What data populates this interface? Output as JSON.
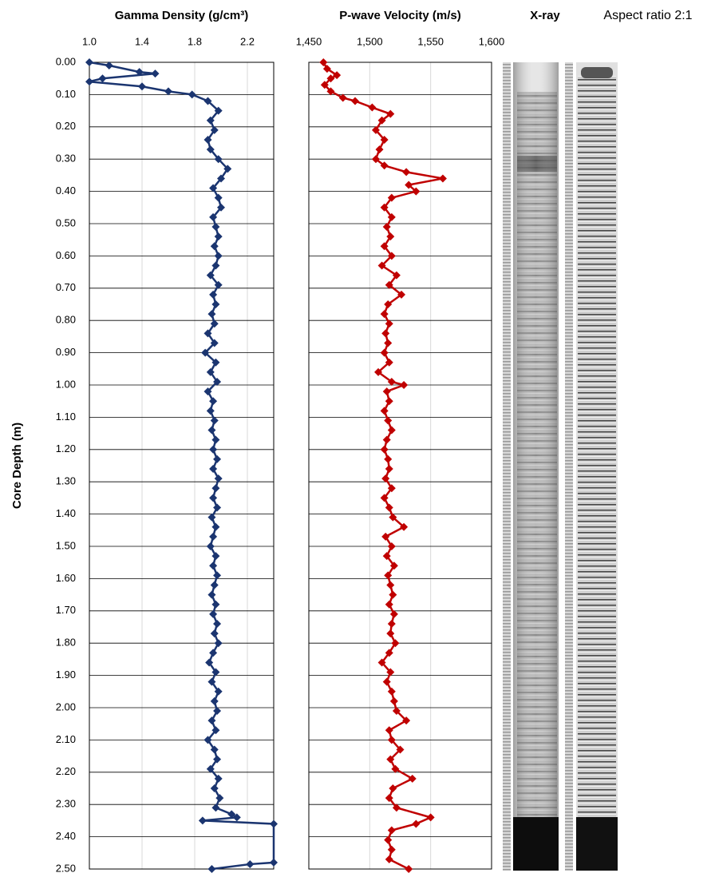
{
  "chart_data": [
    {
      "type": "line",
      "title": "Gamma Density (g/cm³)",
      "ylabel": "Core Depth (m)",
      "color": "#1b3570",
      "marker": "diamond",
      "xlim": [
        1.0,
        2.4
      ],
      "xticks": [
        {
          "value": 1.0,
          "label": "1.0"
        },
        1.4,
        1.8,
        2.2
      ],
      "ylim": [
        0,
        2.5
      ],
      "yticks": [
        {
          "value": 0,
          "label": "0.00"
        },
        {
          "value": 0.1,
          "label": "0.10"
        },
        {
          "value": 0.2,
          "label": "0.20"
        },
        {
          "value": 0.3,
          "label": "0.30"
        },
        {
          "value": 0.4,
          "label": "0.40"
        },
        {
          "value": 0.5,
          "label": "0.50"
        },
        {
          "value": 0.6,
          "label": "0.60"
        },
        {
          "value": 0.7,
          "label": "0.70"
        },
        {
          "value": 0.8,
          "label": "0.80"
        },
        {
          "value": 0.9,
          "label": "0.90"
        },
        {
          "value": 1.0,
          "label": "1.00"
        },
        {
          "value": 1.1,
          "label": "1.10"
        },
        {
          "value": 1.2,
          "label": "1.20"
        },
        {
          "value": 1.3,
          "label": "1.30"
        },
        {
          "value": 1.4,
          "label": "1.40"
        },
        {
          "value": 1.5,
          "label": "1.50"
        },
        {
          "value": 1.6,
          "label": "1.60"
        },
        {
          "value": 1.7,
          "label": "1.70"
        },
        {
          "value": 1.8,
          "label": "1.80"
        },
        {
          "value": 1.9,
          "label": "1.90"
        },
        {
          "value": 2.0,
          "label": "2.00"
        },
        {
          "value": 2.1,
          "label": "2.10"
        },
        {
          "value": 2.2,
          "label": "2.20"
        },
        {
          "value": 2.3,
          "label": "2.30"
        },
        {
          "value": 2.4,
          "label": "2.40"
        },
        {
          "value": 2.5,
          "label": "2.50"
        }
      ],
      "grid": true,
      "depth": [
        0,
        0.01,
        0.03,
        0.035,
        0.05,
        0.06,
        0.075,
        0.09,
        0.1,
        0.12,
        0.15,
        0.18,
        0.21,
        0.24,
        0.27,
        0.3,
        0.33,
        0.36,
        0.39,
        0.42,
        0.45,
        0.48,
        0.51,
        0.54,
        0.57,
        0.6,
        0.63,
        0.66,
        0.69,
        0.72,
        0.75,
        0.78,
        0.81,
        0.84,
        0.87,
        0.9,
        0.93,
        0.96,
        0.99,
        1.02,
        1.05,
        1.08,
        1.11,
        1.14,
        1.17,
        1.2,
        1.23,
        1.26,
        1.29,
        1.32,
        1.35,
        1.38,
        1.41,
        1.44,
        1.47,
        1.5,
        1.53,
        1.56,
        1.59,
        1.62,
        1.65,
        1.68,
        1.71,
        1.74,
        1.77,
        1.8,
        1.83,
        1.86,
        1.89,
        1.92,
        1.95,
        1.98,
        2.01,
        2.04,
        2.07,
        2.1,
        2.13,
        2.16,
        2.19,
        2.22,
        2.25,
        2.28,
        2.31,
        2.33,
        2.34,
        2.35,
        2.36,
        2.48,
        2.485,
        2.5
      ],
      "values": [
        1.0,
        1.15,
        1.38,
        1.5,
        1.1,
        1.0,
        1.4,
        1.6,
        1.78,
        1.9,
        1.98,
        1.92,
        1.95,
        1.9,
        1.92,
        1.98,
        2.05,
        2.0,
        1.94,
        1.98,
        2.0,
        1.94,
        1.96,
        1.98,
        1.95,
        1.98,
        1.96,
        1.92,
        1.98,
        1.94,
        1.96,
        1.93,
        1.95,
        1.9,
        1.95,
        1.88,
        1.96,
        1.92,
        1.97,
        1.9,
        1.94,
        1.92,
        1.95,
        1.93,
        1.96,
        1.94,
        1.97,
        1.94,
        1.98,
        1.96,
        1.94,
        1.97,
        1.93,
        1.96,
        1.94,
        1.92,
        1.96,
        1.94,
        1.97,
        1.95,
        1.93,
        1.96,
        1.94,
        1.97,
        1.95,
        1.98,
        1.94,
        1.91,
        1.96,
        1.93,
        1.98,
        1.95,
        1.97,
        1.93,
        1.96,
        1.9,
        1.95,
        1.97,
        1.92,
        1.98,
        1.95,
        1.99,
        1.96,
        2.08,
        2.12,
        1.86,
        2.4,
        2.4,
        2.22,
        1.93
      ]
    },
    {
      "type": "line",
      "title": "P-wave Velocity (m/s)",
      "color": "#c00000",
      "marker": "diamond",
      "xlim": [
        1450,
        1600
      ],
      "xticks": [
        {
          "value": 1450,
          "label": "1,450"
        },
        {
          "value": 1500,
          "label": "1,500"
        },
        {
          "value": 1550,
          "label": "1,550"
        },
        {
          "value": 1600,
          "label": "1,600"
        }
      ],
      "ylim": [
        0,
        2.5
      ],
      "yticks": [
        0,
        0.1,
        0.2,
        0.3,
        0.4,
        0.5,
        0.6,
        0.7,
        0.8,
        0.9,
        1.0,
        1.1,
        1.2,
        1.3,
        1.4,
        1.5,
        1.6,
        1.7,
        1.8,
        1.9,
        2.0,
        2.1,
        2.2,
        2.3,
        2.4,
        2.5
      ],
      "grid": true,
      "depth": [
        0,
        0.02,
        0.04,
        0.05,
        0.07,
        0.09,
        0.11,
        0.12,
        0.14,
        0.16,
        0.18,
        0.21,
        0.24,
        0.27,
        0.3,
        0.32,
        0.34,
        0.36,
        0.38,
        0.4,
        0.42,
        0.45,
        0.48,
        0.51,
        0.54,
        0.57,
        0.6,
        0.63,
        0.66,
        0.69,
        0.72,
        0.75,
        0.78,
        0.81,
        0.84,
        0.87,
        0.9,
        0.93,
        0.96,
        0.99,
        1.0,
        1.02,
        1.05,
        1.08,
        1.11,
        1.14,
        1.17,
        1.2,
        1.23,
        1.26,
        1.29,
        1.32,
        1.35,
        1.38,
        1.41,
        1.44,
        1.47,
        1.5,
        1.53,
        1.56,
        1.59,
        1.62,
        1.65,
        1.68,
        1.71,
        1.74,
        1.77,
        1.8,
        1.83,
        1.86,
        1.89,
        1.92,
        1.95,
        1.98,
        2.01,
        2.04,
        2.07,
        2.1,
        2.13,
        2.16,
        2.19,
        2.22,
        2.25,
        2.28,
        2.31,
        2.34,
        2.36,
        2.38,
        2.41,
        2.44,
        2.47,
        2.5
      ],
      "values": [
        1462,
        1465,
        1473,
        1468,
        1463,
        1468,
        1478,
        1488,
        1502,
        1517,
        1510,
        1505,
        1512,
        1508,
        1505,
        1512,
        1530,
        1560,
        1532,
        1538,
        1518,
        1512,
        1518,
        1514,
        1517,
        1512,
        1518,
        1510,
        1522,
        1516,
        1526,
        1515,
        1512,
        1516,
        1513,
        1515,
        1512,
        1516,
        1507,
        1518,
        1528,
        1514,
        1516,
        1512,
        1515,
        1518,
        1514,
        1512,
        1515,
        1516,
        1513,
        1518,
        1512,
        1516,
        1519,
        1528,
        1513,
        1518,
        1514,
        1520,
        1515,
        1517,
        1519,
        1516,
        1520,
        1518,
        1517,
        1521,
        1516,
        1510,
        1517,
        1514,
        1518,
        1520,
        1522,
        1530,
        1516,
        1518,
        1525,
        1517,
        1521,
        1535,
        1519,
        1516,
        1522,
        1550,
        1538,
        1518,
        1515,
        1518,
        1516,
        1532
      ]
    }
  ],
  "xray_label": "X-ray",
  "aspect_label": "Aspect ratio 2:1"
}
